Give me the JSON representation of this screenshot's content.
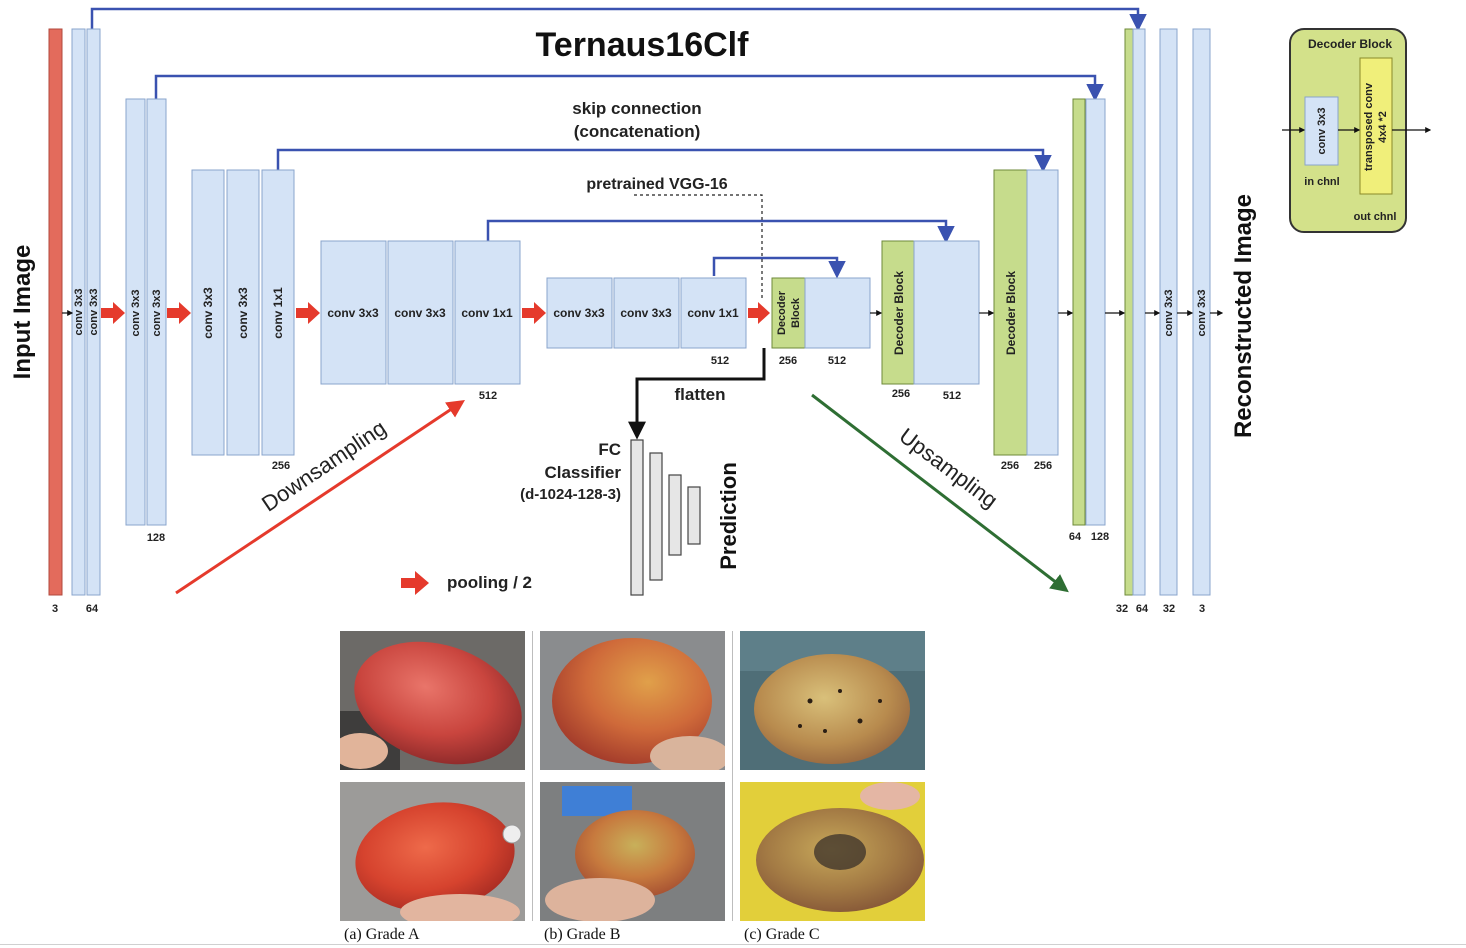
{
  "diagram": {
    "title": "Ternaus16Clf",
    "input_label": "Input Image",
    "output_label": "Reconstructed Image",
    "skip_label_1": "skip connection",
    "skip_label_2": "(concatenation)",
    "pretrained_label": "pretrained VGG-16",
    "flatten_label": "flatten",
    "fc_label_1": "FC",
    "fc_label_2": "Classifier",
    "fc_label_3": "(d-1024-128-3)",
    "prediction_label": "Prediction",
    "downsampling_label": "Downsampling",
    "upsampling_label": "Upsampling",
    "pooling_label": "pooling / 2",
    "layers": {
      "conv3x3": "conv 3x3",
      "conv1x1": "conv 1x1",
      "decoder_block": "Decoder Block",
      "decoder_block_line1": "Decoder",
      "decoder_block_line2": "Block"
    },
    "channels": {
      "c3": "3",
      "c64": "64",
      "c128": "128",
      "c256": "256",
      "c512": "512",
      "c32": "32"
    },
    "legend": {
      "title": "Decoder Block",
      "conv": "conv 3x3",
      "transposed_1": "transposed conv",
      "transposed_2": "4x4 *2",
      "in_chnl": "in chnl",
      "out_chnl": "out chnl"
    },
    "colors": {
      "block_fill": "#d4e3f6",
      "block_stroke": "#8aa4cc",
      "decoder_fill": "#c6dc8c",
      "decoder_stroke": "#6e8a3a",
      "input_fill": "#e36b5c",
      "skip_arrow": "#3a52b0",
      "pool_arrow": "#e53a2c",
      "down_arrow": "#e53a2c",
      "up_arrow": "#2e6e33",
      "legend_fill": "#d3e18a"
    }
  },
  "photos": {
    "captions": [
      "(a) Grade A",
      "(b) Grade B",
      "(c) Grade C"
    ]
  }
}
